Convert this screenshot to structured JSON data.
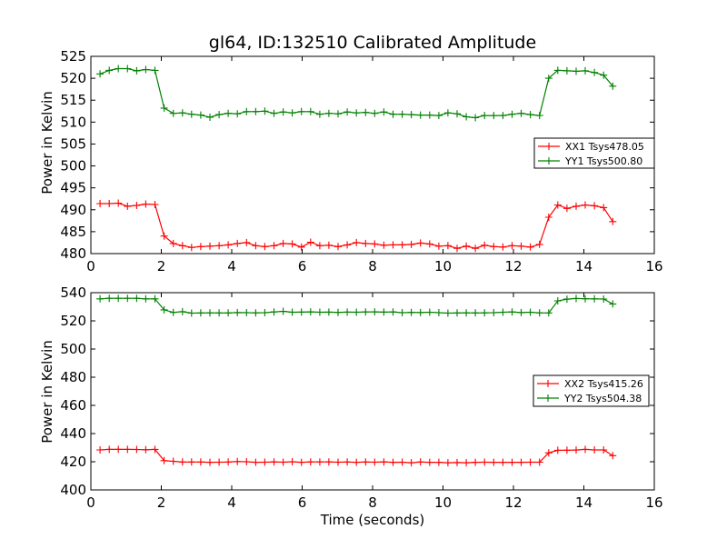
{
  "chart_data": [
    {
      "type": "line",
      "title": "gl64, ID:132510 Calibrated Amplitude",
      "xlabel": "",
      "ylabel": "Power in Kelvin",
      "xlim": [
        0,
        16
      ],
      "ylim": [
        480,
        525
      ],
      "xticks": [
        0,
        2,
        4,
        6,
        8,
        10,
        12,
        14,
        16
      ],
      "yticks": [
        480,
        485,
        490,
        495,
        500,
        505,
        510,
        515,
        520,
        525
      ],
      "legend_position": "center-right",
      "grid": false,
      "series": [
        {
          "name": "XX1 Tsys478.05",
          "color": "#ff0000",
          "x": [
            0.26,
            0.52,
            0.78,
            1.04,
            1.3,
            1.56,
            1.82,
            2.08,
            2.34,
            2.6,
            2.86,
            3.12,
            3.38,
            3.64,
            3.9,
            4.16,
            4.42,
            4.68,
            4.94,
            5.2,
            5.46,
            5.72,
            5.98,
            6.24,
            6.5,
            6.76,
            7.02,
            7.28,
            7.54,
            7.8,
            8.06,
            8.32,
            8.58,
            8.84,
            9.1,
            9.36,
            9.62,
            9.88,
            10.14,
            10.4,
            10.66,
            10.92,
            11.18,
            11.44,
            11.7,
            11.96,
            12.22,
            12.48,
            12.74,
            13.0,
            13.26,
            13.52,
            13.78,
            14.04,
            14.3,
            14.56,
            14.82,
            15.08
          ],
          "values": [
            491.4,
            491.4,
            491.5,
            490.8,
            491.0,
            491.3,
            491.2,
            484.0,
            482.3,
            481.8,
            481.4,
            481.6,
            481.7,
            481.8,
            482.0,
            482.3,
            482.5,
            481.8,
            481.6,
            481.8,
            482.3,
            482.2,
            481.5,
            482.6,
            481.8,
            481.9,
            481.6,
            482.0,
            482.5,
            482.3,
            482.2,
            481.9,
            482.0,
            482.0,
            482.1,
            482.4,
            482.2,
            481.7,
            481.8,
            481.2,
            481.7,
            481.2,
            481.9,
            481.6,
            481.5,
            481.8,
            481.7,
            481.5,
            482.1,
            488.3,
            491.1,
            490.3,
            490.8,
            491.1,
            490.9,
            490.5,
            487.3,
            null
          ]
        },
        {
          "name": "YY1 Tsys500.80",
          "color": "#008000",
          "x": [
            0.26,
            0.52,
            0.78,
            1.04,
            1.3,
            1.56,
            1.82,
            2.08,
            2.34,
            2.6,
            2.86,
            3.12,
            3.38,
            3.64,
            3.9,
            4.16,
            4.42,
            4.68,
            4.94,
            5.2,
            5.46,
            5.72,
            5.98,
            6.24,
            6.5,
            6.76,
            7.02,
            7.28,
            7.54,
            7.8,
            8.06,
            8.32,
            8.58,
            8.84,
            9.1,
            9.36,
            9.62,
            9.88,
            10.14,
            10.4,
            10.66,
            10.92,
            11.18,
            11.44,
            11.7,
            11.96,
            12.22,
            12.48,
            12.74,
            13.0,
            13.26,
            13.52,
            13.78,
            14.04,
            14.3,
            14.56,
            14.82,
            15.08
          ],
          "values": [
            521.0,
            521.8,
            522.2,
            522.2,
            521.7,
            522.0,
            521.8,
            513.2,
            512.0,
            512.1,
            511.8,
            511.6,
            511.1,
            511.7,
            512.0,
            511.9,
            512.4,
            512.4,
            512.5,
            512.0,
            512.3,
            512.1,
            512.4,
            512.4,
            511.8,
            512.0,
            511.9,
            512.3,
            512.1,
            512.2,
            512.0,
            512.3,
            511.8,
            511.8,
            511.7,
            511.6,
            511.6,
            511.5,
            512.1,
            511.9,
            511.2,
            511.0,
            511.5,
            511.5,
            511.5,
            511.8,
            512.0,
            511.7,
            511.5,
            520.0,
            521.8,
            521.7,
            521.6,
            521.7,
            521.3,
            520.7,
            518.2,
            null
          ]
        }
      ]
    },
    {
      "type": "line",
      "title": "",
      "xlabel": "Time (seconds)",
      "ylabel": "Power in Kelvin",
      "xlim": [
        0,
        16
      ],
      "ylim": [
        400,
        540
      ],
      "xticks": [
        0,
        2,
        4,
        6,
        8,
        10,
        12,
        14,
        16
      ],
      "yticks": [
        400,
        420,
        440,
        460,
        480,
        500,
        520,
        540
      ],
      "legend_position": "center-right",
      "grid": false,
      "series": [
        {
          "name": "XX2 Tsys415.26",
          "color": "#ff0000",
          "x": [
            0.26,
            0.52,
            0.78,
            1.04,
            1.3,
            1.56,
            1.82,
            2.08,
            2.34,
            2.6,
            2.86,
            3.12,
            3.38,
            3.64,
            3.9,
            4.16,
            4.42,
            4.68,
            4.94,
            5.2,
            5.46,
            5.72,
            5.98,
            6.24,
            6.5,
            6.76,
            7.02,
            7.28,
            7.54,
            7.8,
            8.06,
            8.32,
            8.58,
            8.84,
            9.1,
            9.36,
            9.62,
            9.88,
            10.14,
            10.4,
            10.66,
            10.92,
            11.18,
            11.44,
            11.7,
            11.96,
            12.22,
            12.48,
            12.74,
            13.0,
            13.26,
            13.52,
            13.78,
            14.04,
            14.3,
            14.56,
            14.82,
            15.08
          ],
          "values": [
            428.4,
            428.8,
            428.8,
            428.8,
            428.7,
            428.5,
            428.8,
            420.8,
            420.3,
            419.8,
            419.8,
            419.8,
            419.6,
            419.7,
            419.8,
            420.1,
            420.0,
            419.6,
            419.7,
            419.9,
            419.7,
            420.0,
            419.6,
            419.9,
            419.9,
            419.9,
            419.7,
            419.8,
            419.6,
            419.8,
            419.7,
            419.9,
            419.6,
            419.7,
            419.3,
            419.8,
            419.6,
            419.6,
            419.3,
            419.4,
            419.3,
            419.6,
            419.7,
            419.6,
            419.6,
            419.6,
            419.6,
            419.7,
            419.7,
            426.3,
            428.1,
            428.2,
            428.3,
            428.8,
            428.4,
            428.4,
            424.3,
            null
          ]
        },
        {
          "name": "YY2 Tsys504.38",
          "color": "#008000",
          "x": [
            0.26,
            0.52,
            0.78,
            1.04,
            1.3,
            1.56,
            1.82,
            2.08,
            2.34,
            2.6,
            2.86,
            3.12,
            3.38,
            3.64,
            3.9,
            4.16,
            4.42,
            4.68,
            4.94,
            5.2,
            5.46,
            5.72,
            5.98,
            6.24,
            6.5,
            6.76,
            7.02,
            7.28,
            7.54,
            7.8,
            8.06,
            8.32,
            8.58,
            8.84,
            9.1,
            9.36,
            9.62,
            9.88,
            10.14,
            10.4,
            10.66,
            10.92,
            11.18,
            11.44,
            11.7,
            11.96,
            12.22,
            12.48,
            12.74,
            13.0,
            13.26,
            13.52,
            13.78,
            14.04,
            14.3,
            14.56,
            14.82,
            15.08
          ],
          "values": [
            535.6,
            536.0,
            536.0,
            536.0,
            536.0,
            535.6,
            535.6,
            527.8,
            526.0,
            526.5,
            525.5,
            525.6,
            525.7,
            525.6,
            525.6,
            525.9,
            525.8,
            525.7,
            525.8,
            526.3,
            526.8,
            526.1,
            526.2,
            526.4,
            526.1,
            526.2,
            526.0,
            526.2,
            526.1,
            526.3,
            526.4,
            526.2,
            526.3,
            525.8,
            526.0,
            525.9,
            526.1,
            525.8,
            525.5,
            525.6,
            525.7,
            525.6,
            525.7,
            525.8,
            526.1,
            526.3,
            525.9,
            526.1,
            525.7,
            525.6,
            534.2,
            535.4,
            535.9,
            535.7,
            535.6,
            535.5,
            532.0,
            null
          ]
        }
      ]
    }
  ]
}
